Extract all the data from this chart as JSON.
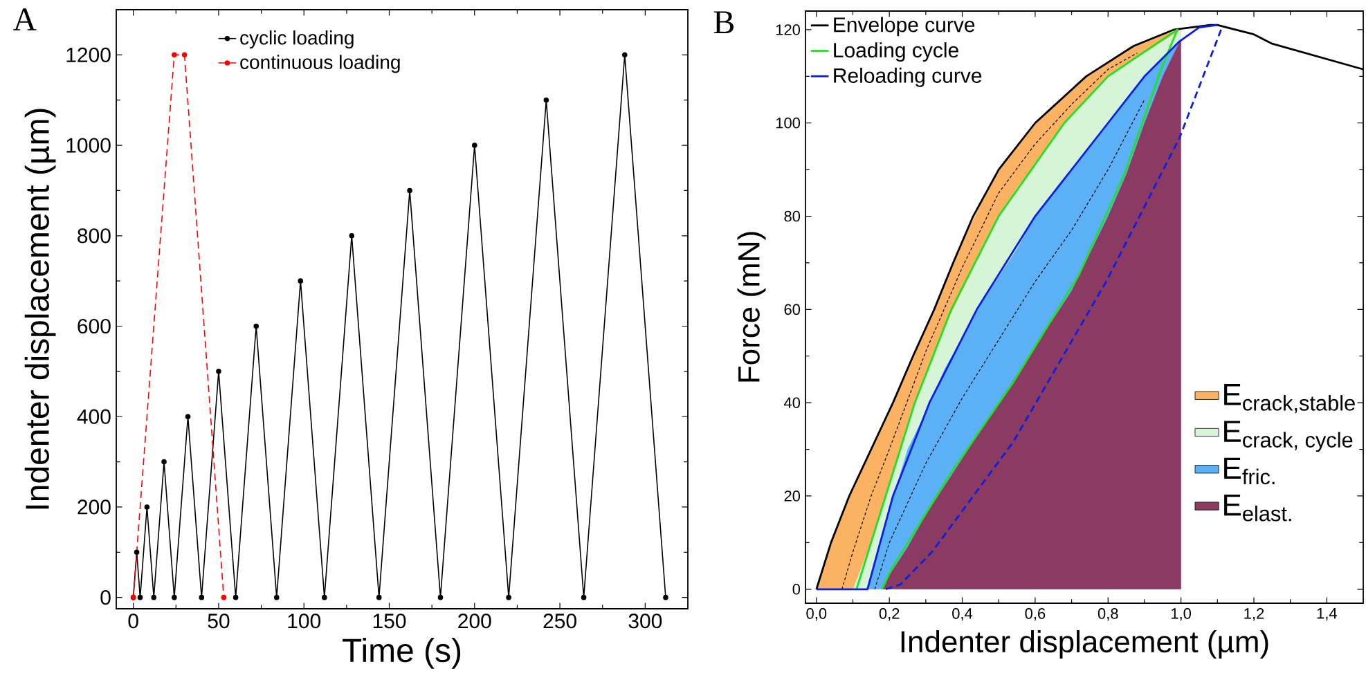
{
  "chart_data": [
    {
      "type": "line",
      "title": "A",
      "xlabel": "Time (s)",
      "ylabel": "Indenter displacement (µm)",
      "xlim": [
        -10,
        325
      ],
      "ylim": [
        -25,
        1300
      ],
      "xticks": [
        0,
        50,
        100,
        150,
        200,
        250,
        300
      ],
      "yticks": [
        0,
        200,
        400,
        600,
        800,
        1000,
        1200
      ],
      "marker": "circle",
      "legend": "top left",
      "grid": false,
      "series": [
        {
          "name": "cyclic loading",
          "color": "#000000",
          "x": [
            0,
            2,
            4,
            8,
            12,
            18,
            24,
            32,
            40,
            50,
            60,
            72,
            84,
            98,
            112,
            128,
            144,
            162,
            180,
            200,
            220,
            242,
            264,
            288,
            312
          ],
          "values": [
            0,
            100,
            0,
            200,
            0,
            300,
            0,
            400,
            0,
            500,
            0,
            600,
            0,
            700,
            0,
            800,
            0,
            900,
            0,
            1000,
            0,
            1100,
            0,
            1200,
            0
          ]
        },
        {
          "name": "continuous loading",
          "color": "#ff0000",
          "line_style": "dashed",
          "x": [
            0,
            24,
            30,
            53
          ],
          "values": [
            0,
            1200,
            1200,
            0
          ]
        }
      ]
    },
    {
      "type": "line",
      "title": "B",
      "xlabel": "Indenter displacement (µm)",
      "ylabel": "Force (mN)",
      "xlim": [
        -0.03,
        1.5
      ],
      "ylim": [
        -3,
        124
      ],
      "xticks": [
        {
          "value": 0,
          "label": "0,0"
        },
        {
          "value": 0.2,
          "label": "0,2"
        },
        {
          "value": 0.4,
          "label": "0,4"
        },
        {
          "value": 0.6,
          "label": "0,6"
        },
        {
          "value": 0.8,
          "label": "0,8"
        },
        {
          "value": 1.0,
          "label": "1,0"
        },
        {
          "value": 1.2,
          "label": "1,2"
        },
        {
          "value": 1.4,
          "label": "1,4"
        }
      ],
      "yticks": [
        0,
        20,
        40,
        60,
        80,
        100,
        120
      ],
      "legend": "top left",
      "grid": false,
      "marker": "none",
      "series": [
        {
          "name": "\\text{E}_{\\text{crack,stable}}",
          "type": "area",
          "color": "#fbb262",
          "x": [
            0,
            0.05,
            0.1,
            0.15,
            0.2,
            0.25,
            0.3,
            0.35,
            0.4,
            0.45,
            0.5,
            0.55,
            0.6,
            0.65,
            0.7,
            0.75,
            0.8,
            0.85,
            0.9,
            0.95,
            1.0
          ],
          "values": [
            0,
            12,
            22,
            30,
            38,
            47,
            56,
            65,
            74.5,
            82.5,
            90,
            95,
            100,
            103.5,
            107,
            110.5,
            113,
            115.5,
            117.5,
            119,
            120
          ]
        },
        {
          "name": "\\text{E}_{\\text{crack, cycle}}",
          "type": "area",
          "color": "#d6f5d6",
          "x": [
            0.1,
            0.15,
            0.2,
            0.25,
            0.3,
            0.35,
            0.4,
            0.45,
            0.5,
            0.55,
            0.6,
            0.65,
            0.7,
            0.75,
            0.8,
            0.85,
            0.9,
            0.95,
            1.0
          ],
          "values": [
            0,
            10,
            22,
            35,
            46,
            56,
            64,
            72,
            80,
            86,
            91,
            97,
            101.5,
            106,
            110,
            112.5,
            115,
            117.5,
            120
          ]
        },
        {
          "name": "\\text{E}_{\\text{fric.}}",
          "type": "area",
          "color": "#5cb0f5",
          "x": [
            0.14,
            0.2,
            0.25,
            0.3,
            0.35,
            0.4,
            0.45,
            0.5,
            0.55,
            0.6,
            0.65,
            0.7,
            0.75,
            0.8,
            0.85,
            0.9,
            0.95,
            1.0
          ],
          "values": [
            0,
            17,
            30,
            38,
            47,
            54,
            61,
            67,
            73,
            80,
            85,
            90,
            95,
            100,
            105,
            110,
            114,
            118
          ]
        },
        {
          "name": "\\text{E}_{\\text{elast.}}",
          "type": "area",
          "color": "#8b3a62",
          "x": [
            0.18,
            0.2,
            0.25,
            0.3,
            0.35,
            0.4,
            0.45,
            0.5,
            0.55,
            0.6,
            0.65,
            0.7,
            0.75,
            0.8,
            0.85,
            0.9,
            0.95,
            1.0
          ],
          "values": [
            0,
            3,
            9,
            16,
            22,
            28,
            34,
            40,
            46,
            52,
            58,
            64,
            72,
            80,
            89,
            100,
            110,
            118
          ]
        },
        {
          "color": "#000000",
          "line_style": "dashed",
          "x": [
            0.07,
            0.1,
            0.15,
            0.2,
            0.3,
            0.4,
            0.5,
            0.6,
            0.7,
            0.8,
            0.88
          ],
          "values": [
            0,
            8,
            20,
            30,
            51,
            69,
            85,
            95.5,
            104,
            111.5,
            115
          ]
        },
        {
          "color": "#000000",
          "line_style": "dashed",
          "x": [
            0.16,
            0.2,
            0.3,
            0.4,
            0.5,
            0.6,
            0.7,
            0.8,
            0.9
          ],
          "values": [
            0,
            10,
            27,
            41,
            53.5,
            66,
            77,
            90,
            105
          ]
        },
        {
          "name": "Envelope curve",
          "color": "#000000",
          "x": [
            0,
            0.04,
            0.09,
            0.15,
            0.21,
            0.265,
            0.323,
            0.375,
            0.43,
            0.5,
            0.6,
            0.74,
            0.87,
            0.98,
            1.08,
            1.1,
            1.2,
            1.25,
            1.5
          ],
          "values": [
            0,
            10,
            20,
            30,
            40,
            50,
            60,
            70,
            80,
            90,
            100,
            110,
            116.5,
            120,
            121,
            121,
            119,
            117,
            111.5
          ]
        },
        {
          "name": "Loading cycle",
          "color": "#22e022",
          "x": [
            0.11,
            0.19,
            0.27,
            0.37,
            0.5,
            0.68,
            0.8,
            0.99,
            0.946,
            0.845,
            0.72,
            0.54,
            0.367,
            0.204,
            0.18
          ],
          "values": [
            0,
            20,
            40,
            60,
            80,
            100,
            110,
            120,
            111.6,
            89,
            67.4,
            44.4,
            24.7,
            4,
            0
          ]
        },
        {
          "name": "Reloading curve",
          "color": "#0a1ee6",
          "x": [
            0,
            0.14,
            0.21,
            0.31,
            0.44,
            0.6,
            0.8,
            0.9,
            0.996,
            1.05,
            1.1
          ],
          "values": [
            0,
            0,
            20,
            40,
            60,
            80,
            100,
            110,
            117.5,
            120.5,
            121
          ]
        },
        {
          "color": "#0a1ee6",
          "line_style": "dashed",
          "x": [
            1.11,
            0.996,
            0.795,
            0.54,
            0.317,
            0.23,
            0.19
          ],
          "values": [
            120,
            96.8,
            66,
            31.6,
            8,
            1,
            0
          ]
        }
      ]
    }
  ]
}
